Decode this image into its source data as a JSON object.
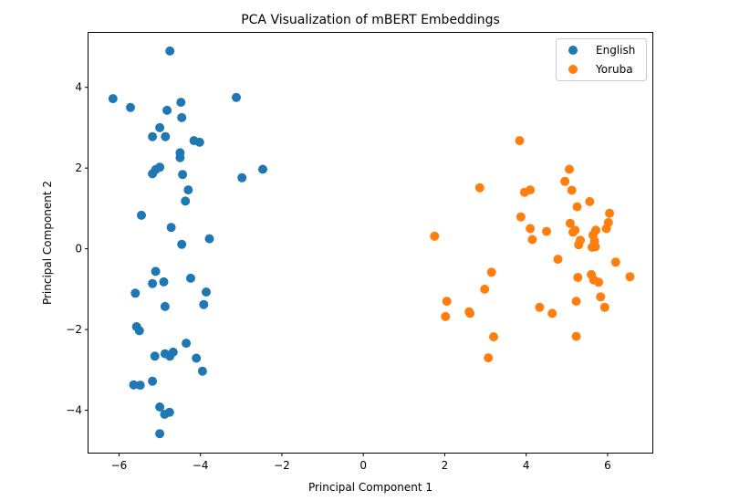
{
  "chart_data": {
    "type": "scatter",
    "title": "PCA Visualization of mBERT Embeddings",
    "xlabel": "Principal Component 1",
    "ylabel": "Principal Component 2",
    "xlim": [
      -6.75,
      7.1
    ],
    "ylim": [
      -5.05,
      5.35
    ],
    "xticks": [
      -6,
      -4,
      -2,
      0,
      2,
      4,
      6
    ],
    "yticks": [
      -4,
      -2,
      0,
      2,
      4
    ],
    "xtick_labels": [
      "−6",
      "−4",
      "−2",
      "0",
      "2",
      "4",
      "6"
    ],
    "ytick_labels": [
      "−4",
      "−2",
      "0",
      "2",
      "4"
    ],
    "grid": false,
    "legend": "top-right",
    "series": [
      {
        "name": "English",
        "color": "#1f77b4",
        "points": [
          [
            -4.75,
            4.9
          ],
          [
            -6.15,
            3.72
          ],
          [
            -5.72,
            3.5
          ],
          [
            -3.12,
            3.75
          ],
          [
            -4.48,
            3.63
          ],
          [
            -4.82,
            3.43
          ],
          [
            -4.46,
            3.25
          ],
          [
            -5.0,
            3.0
          ],
          [
            -5.18,
            2.78
          ],
          [
            -4.86,
            2.78
          ],
          [
            -4.16,
            2.68
          ],
          [
            -4.02,
            2.64
          ],
          [
            -4.5,
            2.38
          ],
          [
            -4.5,
            2.26
          ],
          [
            -5.0,
            2.02
          ],
          [
            -5.1,
            1.96
          ],
          [
            -5.18,
            1.86
          ],
          [
            -4.44,
            1.84
          ],
          [
            -2.47,
            1.97
          ],
          [
            -2.98,
            1.76
          ],
          [
            -4.3,
            1.46
          ],
          [
            -4.37,
            1.18
          ],
          [
            -5.45,
            0.83
          ],
          [
            -4.72,
            0.53
          ],
          [
            -3.78,
            0.25
          ],
          [
            -4.46,
            0.11
          ],
          [
            -5.1,
            -0.56
          ],
          [
            -4.24,
            -0.73
          ],
          [
            -5.18,
            -0.86
          ],
          [
            -4.9,
            -0.82
          ],
          [
            -3.86,
            -1.07
          ],
          [
            -5.6,
            -1.1
          ],
          [
            -3.92,
            -1.38
          ],
          [
            -4.87,
            -1.43
          ],
          [
            -5.57,
            -1.93
          ],
          [
            -5.5,
            -2.03
          ],
          [
            -4.35,
            -2.34
          ],
          [
            -4.67,
            -2.56
          ],
          [
            -4.87,
            -2.6
          ],
          [
            -4.75,
            -2.66
          ],
          [
            -5.12,
            -2.66
          ],
          [
            -4.1,
            -2.71
          ],
          [
            -3.95,
            -3.03
          ],
          [
            -5.18,
            -3.28
          ],
          [
            -5.64,
            -3.37
          ],
          [
            -5.48,
            -3.38
          ],
          [
            -5.0,
            -3.92
          ],
          [
            -4.76,
            -4.05
          ],
          [
            -4.88,
            -4.1
          ],
          [
            -5.0,
            -4.58
          ]
        ]
      },
      {
        "name": "Yoruba",
        "color": "#ff7f0e",
        "points": [
          [
            3.84,
            2.68
          ],
          [
            5.06,
            1.97
          ],
          [
            4.95,
            1.67
          ],
          [
            2.86,
            1.51
          ],
          [
            4.1,
            1.46
          ],
          [
            3.96,
            1.4
          ],
          [
            5.12,
            1.45
          ],
          [
            5.56,
            1.17
          ],
          [
            5.25,
            1.04
          ],
          [
            6.05,
            0.88
          ],
          [
            3.87,
            0.79
          ],
          [
            5.08,
            0.63
          ],
          [
            6.02,
            0.65
          ],
          [
            4.1,
            0.5
          ],
          [
            5.2,
            0.46
          ],
          [
            5.97,
            0.5
          ],
          [
            4.5,
            0.43
          ],
          [
            5.15,
            0.41
          ],
          [
            5.71,
            0.46
          ],
          [
            5.64,
            0.34
          ],
          [
            1.75,
            0.31
          ],
          [
            4.15,
            0.23
          ],
          [
            5.33,
            0.21
          ],
          [
            5.68,
            0.19
          ],
          [
            5.29,
            0.1
          ],
          [
            5.62,
            0.04
          ],
          [
            5.7,
            0.05
          ],
          [
            4.78,
            -0.26
          ],
          [
            6.2,
            -0.33
          ],
          [
            3.15,
            -0.58
          ],
          [
            5.6,
            -0.64
          ],
          [
            5.27,
            -0.71
          ],
          [
            5.66,
            -0.77
          ],
          [
            5.78,
            -0.83
          ],
          [
            6.55,
            -0.69
          ],
          [
            2.98,
            -1.0
          ],
          [
            5.83,
            -1.19
          ],
          [
            2.05,
            -1.3
          ],
          [
            5.23,
            -1.3
          ],
          [
            4.33,
            -1.45
          ],
          [
            5.93,
            -1.45
          ],
          [
            2.6,
            -1.56
          ],
          [
            2.62,
            -1.6
          ],
          [
            4.64,
            -1.6
          ],
          [
            2.02,
            -1.68
          ],
          [
            3.2,
            -2.18
          ],
          [
            5.23,
            -2.17
          ],
          [
            3.07,
            -2.7
          ]
        ]
      }
    ]
  }
}
